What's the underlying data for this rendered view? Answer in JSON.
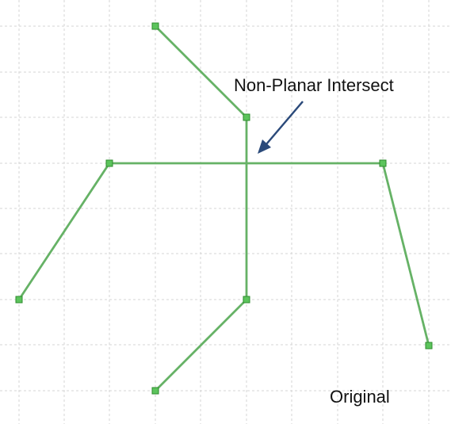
{
  "diagram": {
    "annotation": "Non-Planar Intersect",
    "caption": "Original",
    "colors": {
      "edge": "#66b266",
      "vertex_fill": "#5cc45c",
      "vertex_stroke": "#2e8b2e",
      "arrow": "#2b4a7a",
      "grid": "#d6d6d6"
    }
  }
}
